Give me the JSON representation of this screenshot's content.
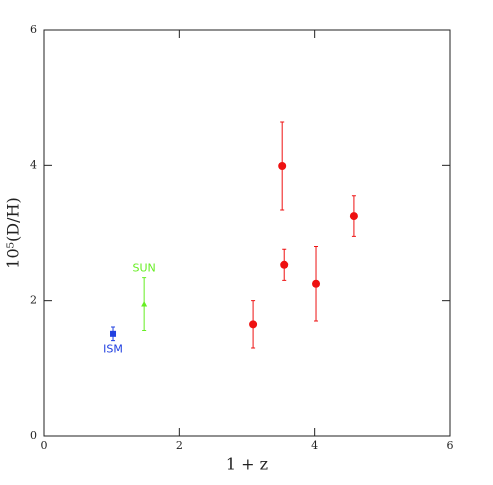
{
  "chart_data": {
    "type": "scatter",
    "x_label": "1 + z",
    "y_label": "10⁵(D/H)",
    "xlim": [
      0,
      6
    ],
    "ylim": [
      0,
      6
    ],
    "xticks": [
      0,
      2,
      4,
      6
    ],
    "yticks": [
      0,
      2,
      4,
      6
    ],
    "series": [
      {
        "name": "ISM",
        "color": "#2040e0",
        "marker": "square",
        "label_side": "below",
        "x": [
          1.02
        ],
        "values": [
          1.51
        ],
        "errors": [
          0.1
        ]
      },
      {
        "name": "SUN",
        "color": "#66ee22",
        "marker": "triangle",
        "label_side": "above",
        "x": [
          1.48
        ],
        "values": [
          1.95
        ],
        "errors": [
          0.39
        ]
      },
      {
        "color": "#ee1111",
        "marker": "circle",
        "x": [
          3.09,
          3.52,
          3.55,
          4.02,
          4.58
        ],
        "values": [
          1.65,
          3.99,
          2.53,
          2.25,
          3.25
        ],
        "errors": [
          0.35,
          0.65,
          0.23,
          0.55,
          0.3
        ]
      }
    ]
  }
}
